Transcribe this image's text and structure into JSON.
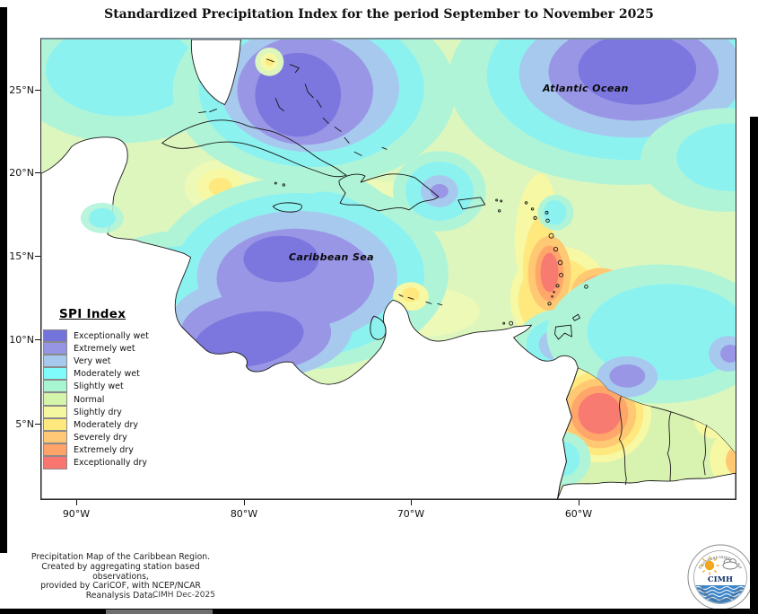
{
  "title": "Standardized Precipitation Index for the period September to November 2025",
  "map": {
    "ocean_label": "Atlantic Ocean",
    "sea_label": "Caribbean Sea",
    "lat_ticks": [
      "25°N",
      "20°N",
      "15°N",
      "10°N",
      "5°N"
    ],
    "lon_ticks": [
      "90°W",
      "80°W",
      "70°W",
      "60°W"
    ]
  },
  "legend": {
    "title": "SPI Index",
    "items": [
      {
        "label": "Exceptionally wet",
        "color": "#7473DC"
      },
      {
        "label": "Extremely wet",
        "color": "#9695E4"
      },
      {
        "label": "Very wet",
        "color": "#A5C8EC"
      },
      {
        "label": "Moderately wet",
        "color": "#7FFBFB"
      },
      {
        "label": "Slightly wet",
        "color": "#A8F5D2"
      },
      {
        "label": "Normal",
        "color": "#D5F5AA"
      },
      {
        "label": "Slightly dry",
        "color": "#F5F7A0"
      },
      {
        "label": "Moderately dry",
        "color": "#FFE87E"
      },
      {
        "label": "Severely dry",
        "color": "#FFC876"
      },
      {
        "label": "Extremely dry",
        "color": "#FFA368"
      },
      {
        "label": "Exceptionally dry",
        "color": "#F8766F"
      }
    ]
  },
  "footer": {
    "lines": [
      "Precipitation Map of the Caribbean Region.",
      "Created by aggregating station based observations,",
      "provided by CariCOF, with NCEP/NCAR Reanalysis Data."
    ],
    "credit": "CIMH Dec-2025"
  },
  "logo": {
    "acronym": "CIMH",
    "arc_top": "Caribbean Institute for",
    "arc_bottom": "Meteorology and Hydrology"
  }
}
